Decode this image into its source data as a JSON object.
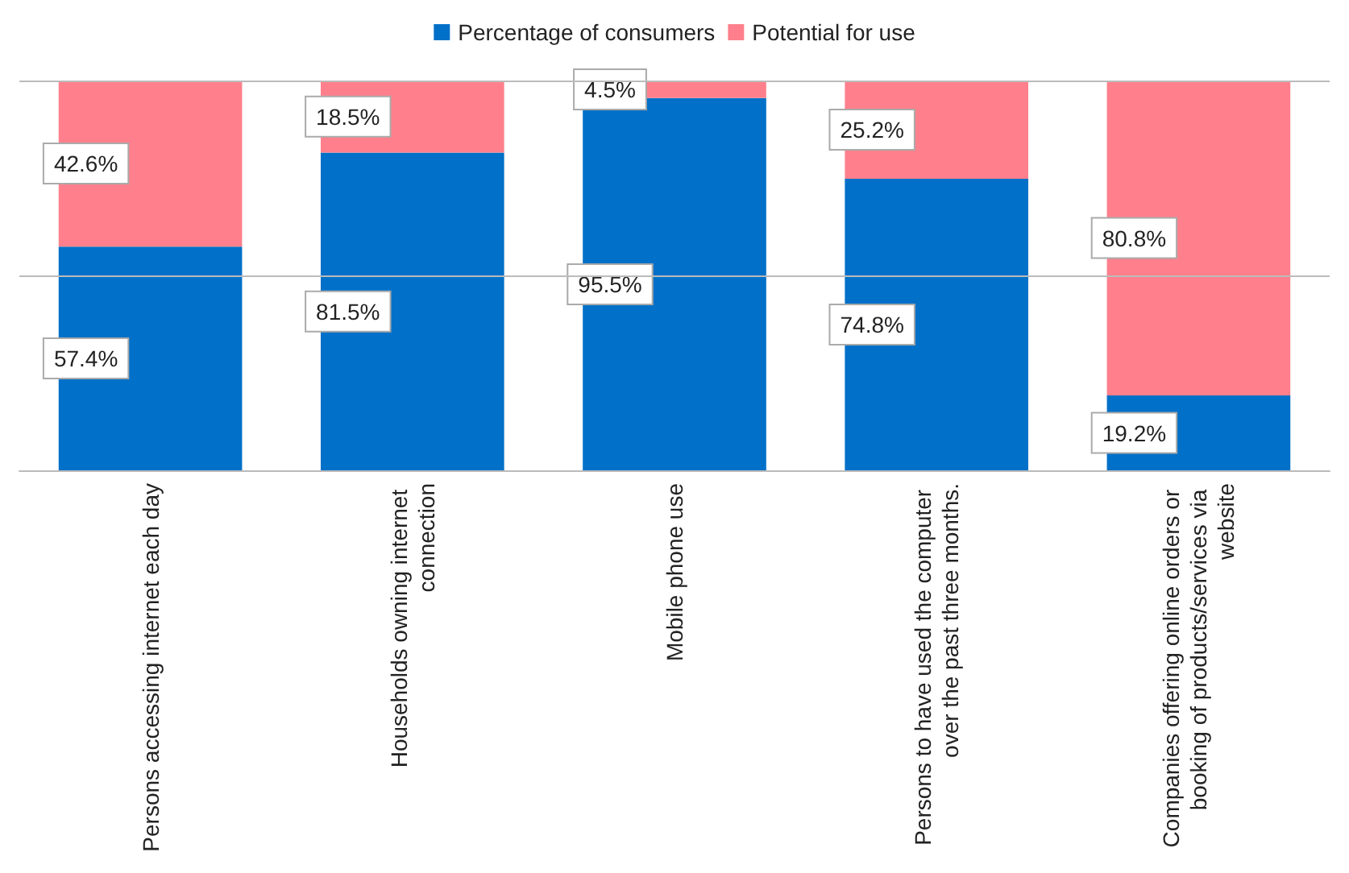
{
  "chart_data": {
    "type": "bar",
    "stacked": true,
    "categories": [
      "Persons accessing internet each day",
      "Households owning internet connection",
      "Mobile phone use",
      "Persons to have used the computer over the past three months.",
      "Companies offering online orders or booking of products/services via website"
    ],
    "series": [
      {
        "name": "Percentage of consumers",
        "color": "#0070c8",
        "values": [
          57.4,
          81.5,
          95.5,
          74.8,
          19.2
        ],
        "value_labels": [
          "57.4%",
          "81.5%",
          "95.5%",
          "74.8%",
          "19.2%"
        ]
      },
      {
        "name": "Potential for use",
        "color": "#ff808c",
        "values": [
          42.6,
          18.5,
          4.5,
          25.2,
          80.8
        ],
        "value_labels": [
          "42.6%",
          "18.5%",
          "4.5%",
          "25.2%",
          "80.8%"
        ]
      }
    ],
    "ref_lines": [
      {
        "axis": "y",
        "value": 50,
        "color": "#bbbbbb"
      },
      {
        "axis": "y",
        "value": 100,
        "color": "#bbbbbb"
      }
    ],
    "tick_labels": "x",
    "legend": "top"
  }
}
